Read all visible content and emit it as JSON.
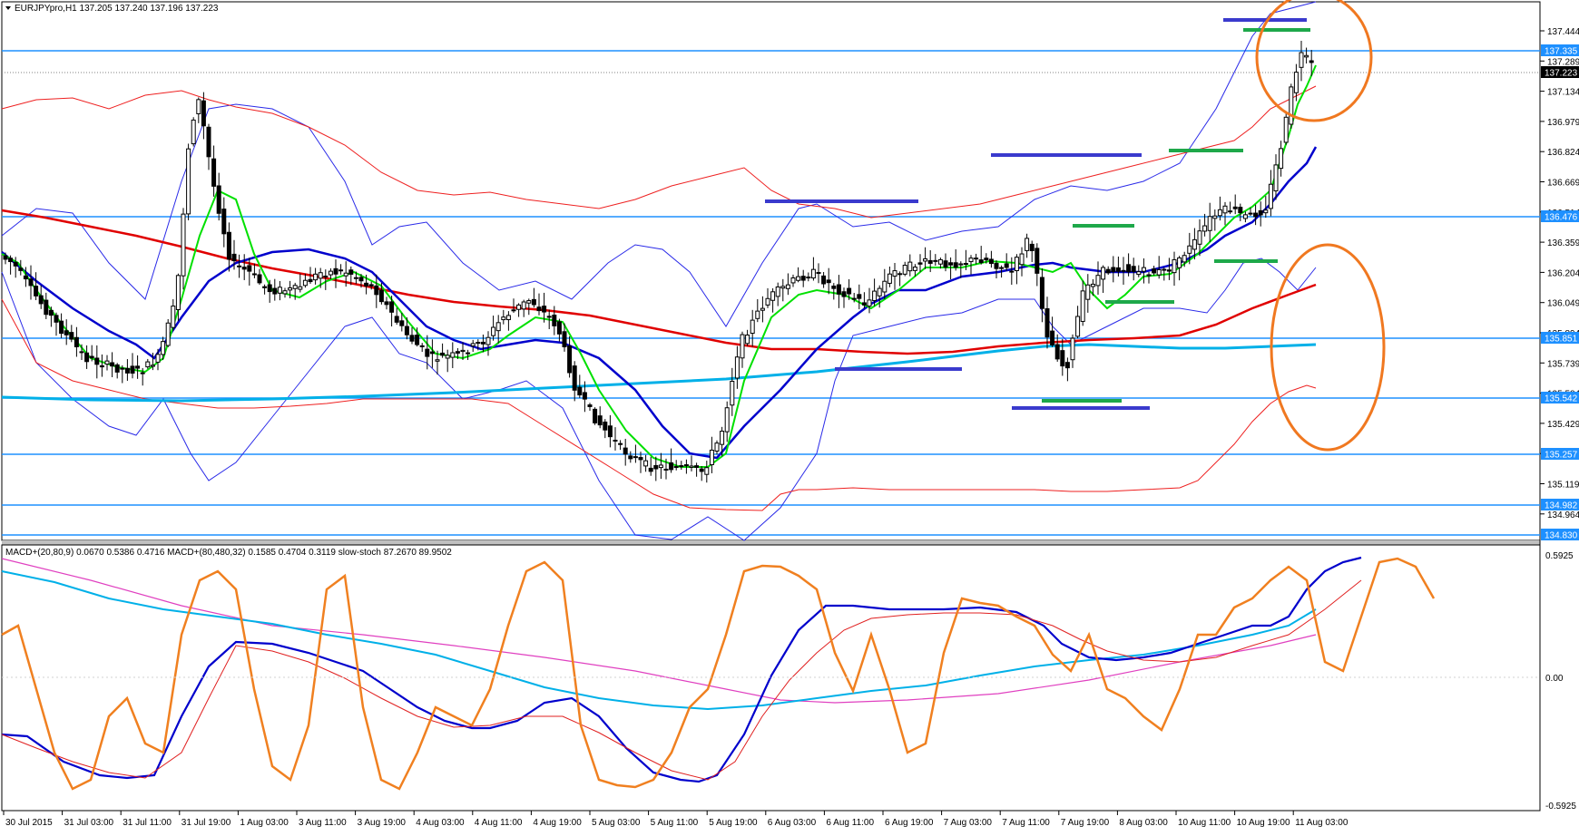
{
  "main_panel": {
    "symbol": "EURJPYpro,H1",
    "ohlc": "137.205 137.240 137.196 137.223",
    "menu_icon": "triangle-down-icon",
    "price_ticks": [
      "137.444",
      "137.289",
      "137.134",
      "136.979",
      "136.824",
      "136.669",
      "136.514",
      "136.359",
      "136.204",
      "136.049",
      "135.894",
      "135.739",
      "135.584",
      "135.429",
      "135.274",
      "135.119",
      "134.964"
    ],
    "level_labels": [
      "137.335",
      "136.476",
      "135.851",
      "135.542",
      "135.257",
      "134.982",
      "134.830"
    ],
    "current_price": "137.223"
  },
  "macd_panel": {
    "title": "MACD+(20,80,9) 0.0670 0.5386 0.4716  MACD+(80,480,32) 0.1585 0.4704 0.3119  slow-stoch 87.2670 89.9502",
    "ticks": [
      "0.5925",
      "0.00",
      "-0.5925"
    ]
  },
  "time_axis": {
    "labels": [
      "30 Jul 2015",
      "31 Jul 03:00",
      "31 Jul 11:00",
      "31 Jul 19:00",
      "1 Aug 03:00",
      "3 Aug 11:00",
      "3 Aug 19:00",
      "4 Aug 03:00",
      "4 Aug 11:00",
      "4 Aug 19:00",
      "5 Aug 03:00",
      "5 Aug 11:00",
      "5 Aug 19:00",
      "6 Aug 03:00",
      "6 Aug 11:00",
      "6 Aug 19:00",
      "7 Aug 03:00",
      "7 Aug 11:00",
      "7 Aug 19:00",
      "8 Aug 03:00",
      "10 Aug 11:00",
      "10 Aug 19:00",
      "11 Aug 03:00"
    ]
  },
  "colors": {
    "level_line": "#1e90ff",
    "ma_red": "#e00000",
    "ma_blue": "#0000cc",
    "ma_cyan": "#00b0e8",
    "ma_green": "#00e000",
    "bollinger_blue": "#2a2ae8",
    "bollinger_red": "#ee2020",
    "marker_blue": "#3a3acd",
    "marker_green": "#1ea84a",
    "annotation_orange": "#f07820",
    "stoch_orange": "#f08020",
    "macd_magenta": "#e040c0"
  }
}
